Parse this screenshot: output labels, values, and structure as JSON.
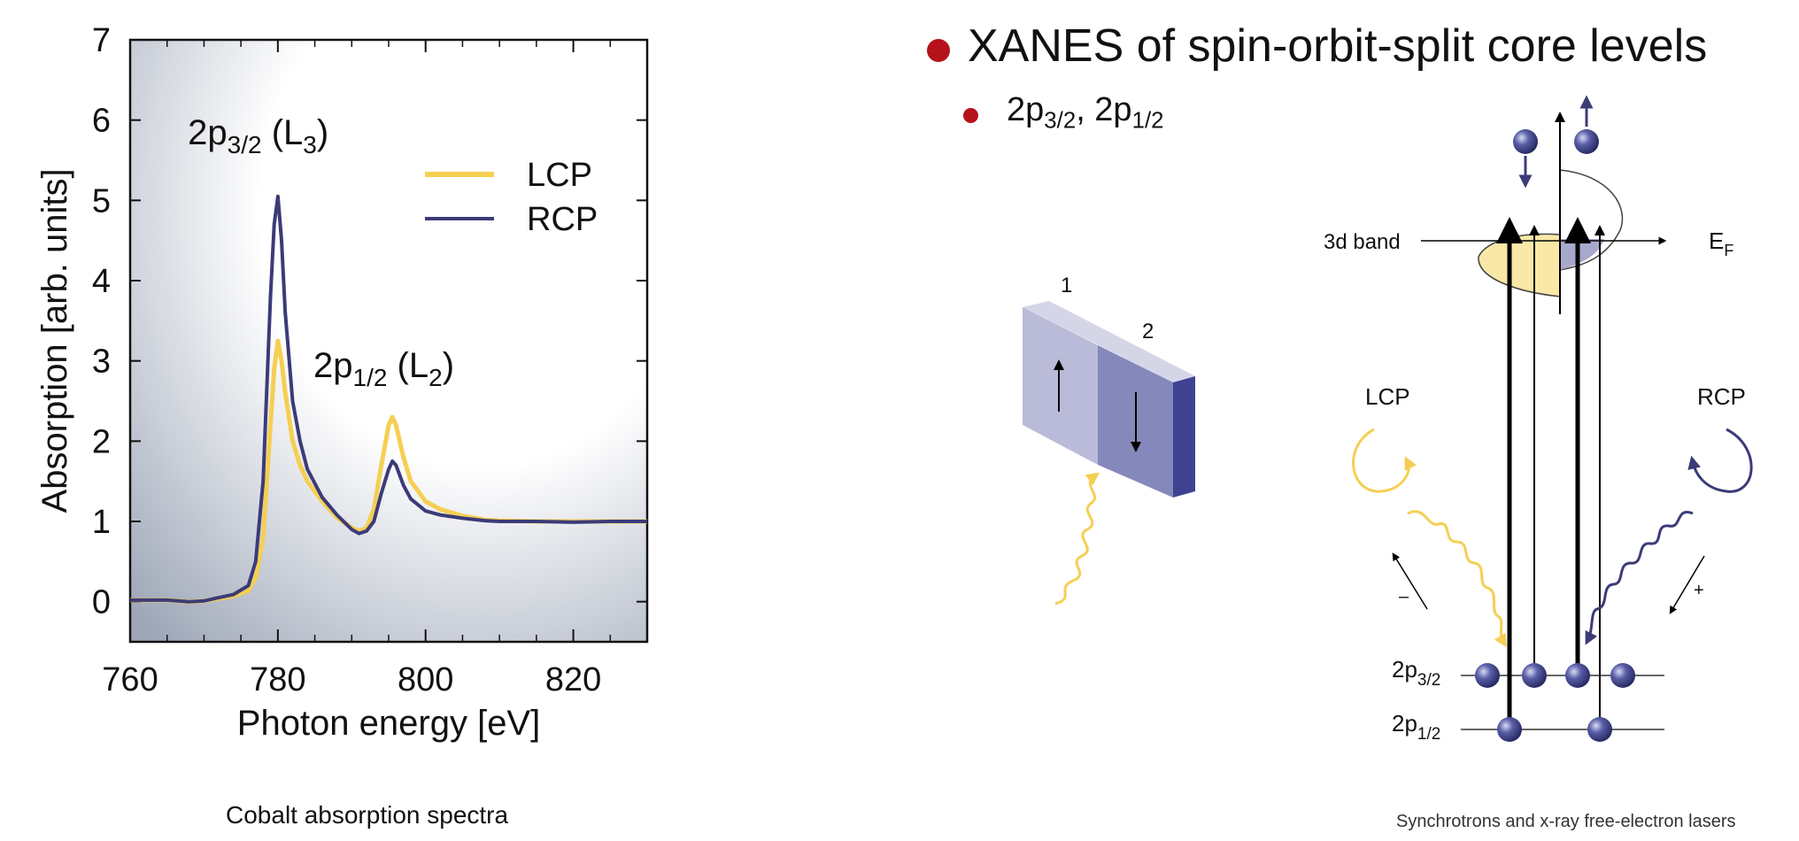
{
  "slide": {
    "heading": "XANES of spin-orbit-split core levels",
    "subheading_parts": [
      "2p",
      "3/2",
      ", 2p",
      "1/2"
    ],
    "caption_left": "Cobalt absorption spectra",
    "caption_right": "Synchrotrons and x-ray free-electron lasers",
    "bullet_color": "#b5121b"
  },
  "chart_data": {
    "type": "line",
    "xlabel": "Photon energy [eV]",
    "ylabel": "Absorption [arb. units]",
    "xlim": [
      760,
      830
    ],
    "ylim": [
      -0.5,
      7
    ],
    "xticks": [
      760,
      780,
      800,
      820
    ],
    "yticks": [
      0,
      1,
      2,
      3,
      4,
      5,
      6,
      7
    ],
    "legend_position": "top-right",
    "series": [
      {
        "name": "LCP",
        "color": "#f5cf52",
        "x": [
          760,
          765,
          768,
          770,
          772,
          774,
          776,
          777,
          778,
          779,
          779.5,
          780,
          780.5,
          781,
          782,
          783,
          784,
          786,
          788,
          790,
          791,
          792,
          793,
          794,
          795,
          795.5,
          796,
          797,
          798,
          800,
          802,
          805,
          808,
          810,
          815,
          820,
          825,
          830
        ],
        "y": [
          0.02,
          0.02,
          0.0,
          0.01,
          0.04,
          0.07,
          0.14,
          0.3,
          0.8,
          2.2,
          2.9,
          3.25,
          3.0,
          2.6,
          2.0,
          1.7,
          1.5,
          1.25,
          1.05,
          0.92,
          0.88,
          0.92,
          1.15,
          1.7,
          2.2,
          2.3,
          2.2,
          1.8,
          1.5,
          1.25,
          1.15,
          1.07,
          1.02,
          1.01,
          1.0,
          1.0,
          1.0,
          1.0
        ]
      },
      {
        "name": "RCP",
        "color": "#3b3b78",
        "x": [
          760,
          765,
          768,
          770,
          772,
          774,
          776,
          777,
          778,
          779,
          779.5,
          780,
          780.5,
          781,
          782,
          783,
          784,
          786,
          788,
          790,
          791,
          792,
          793,
          794,
          795,
          795.5,
          796,
          797,
          798,
          800,
          802,
          805,
          808,
          810,
          815,
          820,
          825,
          830
        ],
        "y": [
          0.02,
          0.02,
          0.0,
          0.01,
          0.05,
          0.09,
          0.2,
          0.5,
          1.5,
          3.8,
          4.7,
          5.05,
          4.5,
          3.6,
          2.5,
          2.0,
          1.65,
          1.3,
          1.08,
          0.9,
          0.85,
          0.88,
          1.0,
          1.35,
          1.65,
          1.75,
          1.7,
          1.45,
          1.28,
          1.13,
          1.08,
          1.04,
          1.01,
          1.0,
          1.0,
          0.99,
          1.0,
          1.0
        ]
      }
    ],
    "annotations": [
      {
        "base": "2p",
        "sub": "3/2",
        "rest": " (L",
        "sub2": "3",
        "end": ")",
        "x": 778,
        "y": 5.7
      },
      {
        "base": "2p",
        "sub": "1/2",
        "rest": " (L",
        "sub2": "2",
        "end": ")",
        "x": 795,
        "y": 2.8
      }
    ]
  },
  "diagram": {
    "domain_label_1": "1",
    "domain_label_2": "2",
    "band_label": "3d band",
    "fermi_label": "E",
    "fermi_sub": "F",
    "lcp_label": "LCP",
    "rcp_label": "RCP",
    "minus_sign": "–",
    "plus_sign": "+",
    "level_32": {
      "base": "2p",
      "sub": "3/2"
    },
    "level_12": {
      "base": "2p",
      "sub": "1/2"
    },
    "lcp_color": "#f5cf52",
    "rcp_color": "#3b3b78",
    "electron_color": "#3b3f86"
  }
}
